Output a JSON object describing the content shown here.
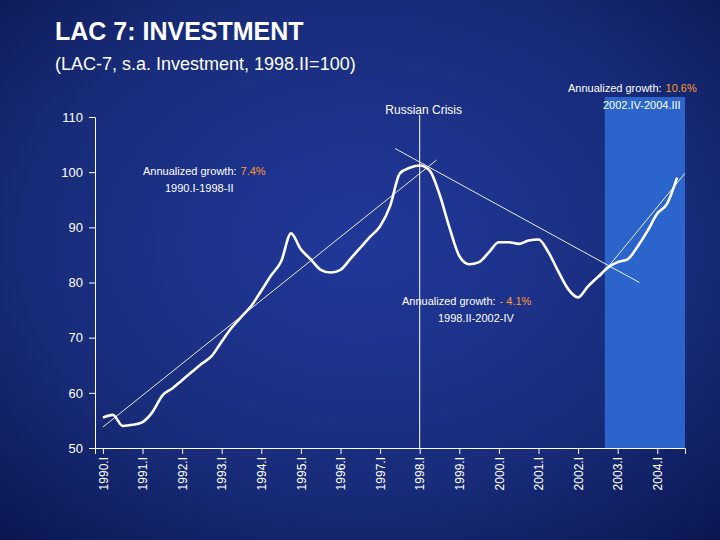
{
  "chart_data": {
    "type": "line",
    "title": "LAC 7: INVESTMENT",
    "subtitle": "(LAC-7, s.a. Investment, 1998.II=100)",
    "categories": [
      "1990.I",
      null,
      null,
      null,
      "1991.I",
      null,
      null,
      null,
      "1992.I",
      null,
      null,
      null,
      "1993.I",
      null,
      null,
      null,
      "1994.I",
      null,
      null,
      null,
      "1995.I",
      null,
      null,
      null,
      "1996.I",
      null,
      null,
      null,
      "1997.I",
      null,
      null,
      null,
      "1998.I",
      null,
      null,
      null,
      "1999.I",
      null,
      null,
      null,
      "2000.I",
      null,
      null,
      null,
      "2001.I",
      null,
      null,
      null,
      "2002.I",
      null,
      null,
      null,
      "2003.I",
      null,
      null,
      null,
      "2004.I",
      null,
      null
    ],
    "values": [
      55.5,
      56,
      54,
      54.2,
      54.7,
      56.5,
      59.5,
      60.8,
      62.3,
      63.8,
      65.3,
      66.7,
      69.3,
      71.8,
      73.8,
      75.8,
      78.5,
      81.3,
      83.8,
      88.9,
      86,
      84.2,
      82.3,
      81.8,
      82.3,
      84.3,
      86.3,
      88.3,
      90.2,
      93.8,
      99.8,
      100.8,
      101.2,
      100.3,
      96,
      90,
      84.8,
      83.3,
      83.7,
      85.5,
      87.3,
      87.3,
      87,
      87.6,
      87.8,
      85.5,
      82,
      78.8,
      77.3,
      79.3,
      81,
      82.7,
      83.7,
      84.2,
      86.5,
      89.3,
      92.5,
      94.3,
      99
    ],
    "color": "#ffffff",
    "ylim": [
      50,
      110
    ],
    "yticks": [
      50,
      60,
      70,
      80,
      90,
      100,
      110
    ],
    "grid": false,
    "trend_lines": [
      {
        "x": [
          0,
          33.7
        ],
        "y": [
          53.8,
          102.2
        ],
        "text": "Annualized growth:",
        "rate_label": "7.4%",
        "period": "1990.I-1998-II"
      },
      {
        "x": [
          29.5,
          54.2
        ],
        "y": [
          104.3,
          80
        ],
        "text": "Annualized growth:",
        "rate_label": "- 4.1%",
        "period": "1998.II-2002-IV"
      },
      {
        "x": [
          50.2,
          58.8
        ],
        "y": [
          81,
          99.8
        ],
        "text": "Annualized growth:",
        "rate_label": "10.6%",
        "period": "2002.IV-2004.III"
      }
    ],
    "event": {
      "x": 32,
      "text": "Russian Crisis"
    },
    "shaded_range": [
      50.7,
      58.8
    ]
  }
}
